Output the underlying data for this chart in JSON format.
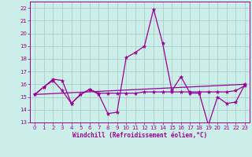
{
  "xlabel": "Windchill (Refroidissement éolien,°C)",
  "xlim": [
    -0.5,
    23.5
  ],
  "ylim": [
    13,
    22.5
  ],
  "yticks": [
    13,
    14,
    15,
    16,
    17,
    18,
    19,
    20,
    21,
    22
  ],
  "xticks": [
    0,
    1,
    2,
    3,
    4,
    5,
    6,
    7,
    8,
    9,
    10,
    11,
    12,
    13,
    14,
    15,
    16,
    17,
    18,
    19,
    20,
    21,
    22,
    23
  ],
  "bg_color": "#cceee8",
  "grid_color": "#aacccc",
  "line_color": "#990099",
  "series0_x": [
    0,
    1,
    2,
    3,
    4,
    5,
    6,
    7,
    8,
    9,
    10,
    11,
    12,
    13,
    14,
    15,
    16,
    17,
    18,
    19,
    20,
    21,
    22,
    23
  ],
  "series0_y": [
    15.2,
    15.8,
    16.3,
    15.5,
    14.5,
    15.2,
    15.6,
    15.2,
    13.7,
    13.8,
    18.1,
    18.5,
    19.0,
    21.9,
    19.2,
    15.5,
    16.6,
    15.3,
    15.3,
    12.8,
    15.0,
    14.5,
    14.6,
    16.0
  ],
  "series1_x": [
    0,
    1,
    2,
    3,
    4,
    5,
    6,
    7,
    8,
    9,
    10,
    11,
    12,
    13,
    14,
    15,
    16,
    17,
    18,
    19,
    20,
    21,
    22,
    23
  ],
  "series1_y": [
    15.2,
    15.8,
    16.4,
    16.3,
    14.5,
    15.2,
    15.6,
    15.3,
    15.3,
    15.3,
    15.3,
    15.3,
    15.4,
    15.4,
    15.4,
    15.4,
    15.4,
    15.4,
    15.4,
    15.4,
    15.4,
    15.4,
    15.5,
    15.9
  ],
  "series2_x": [
    0,
    23
  ],
  "series2_y": [
    15.2,
    16.0
  ]
}
